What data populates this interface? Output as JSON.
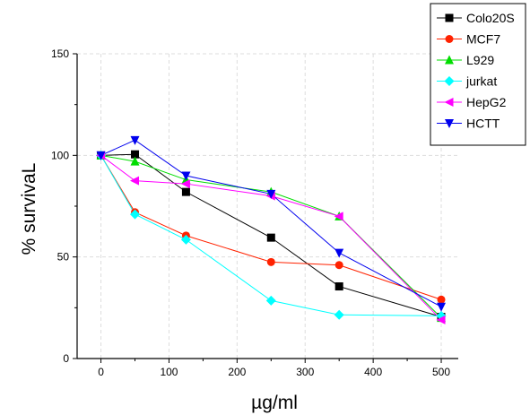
{
  "chart_data": {
    "type": "line",
    "title": "",
    "xlabel": "µg/ml",
    "ylabel": "% survivaL",
    "xlim": [
      -35,
      525
    ],
    "ylim": [
      0,
      150
    ],
    "x_ticks": [
      0,
      100,
      200,
      300,
      400,
      500
    ],
    "y_ticks": [
      0,
      50,
      100,
      150
    ],
    "grid": true,
    "legend_position": "top-right",
    "series": [
      {
        "name": "Colo20S",
        "color": "#000000",
        "marker": "square",
        "x": [
          0,
          50,
          125,
          250,
          350,
          500
        ],
        "y": [
          100,
          100.5,
          82,
          59.5,
          35.5,
          20.5
        ]
      },
      {
        "name": "MCF7",
        "color": "#ff2200",
        "marker": "circle",
        "x": [
          0,
          50,
          125,
          250,
          350,
          500
        ],
        "y": [
          100,
          72,
          60.5,
          47.5,
          46,
          29
        ]
      },
      {
        "name": "L929",
        "color": "#00dd00",
        "marker": "triangle-up",
        "x": [
          0,
          50,
          125,
          250,
          350,
          500
        ],
        "y": [
          100,
          97,
          88,
          82,
          70,
          20
        ]
      },
      {
        "name": "jurkat",
        "color": "#00ffff",
        "marker": "diamond",
        "x": [
          0,
          50,
          125,
          250,
          350,
          500
        ],
        "y": [
          100,
          71,
          58.5,
          28.5,
          21.5,
          21
        ]
      },
      {
        "name": "HepG2",
        "color": "#ff00ff",
        "marker": "triangle-left",
        "x": [
          0,
          50,
          125,
          250,
          350,
          500
        ],
        "y": [
          100,
          87.5,
          86,
          80,
          70,
          19
        ]
      },
      {
        "name": "HCTT",
        "color": "#0000ee",
        "marker": "triangle-down",
        "x": [
          0,
          50,
          125,
          250,
          350,
          500
        ],
        "y": [
          100,
          107.5,
          90,
          81,
          52,
          25.5
        ]
      }
    ]
  }
}
